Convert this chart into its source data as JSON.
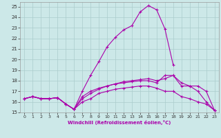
{
  "xlabel": "Windchill (Refroidissement éolien,°C)",
  "xlim": [
    -0.5,
    23.5
  ],
  "ylim": [
    15,
    25.4
  ],
  "xticks": [
    0,
    1,
    2,
    3,
    4,
    5,
    6,
    7,
    8,
    9,
    10,
    11,
    12,
    13,
    14,
    15,
    16,
    17,
    18,
    19,
    20,
    21,
    22,
    23
  ],
  "yticks": [
    15,
    16,
    17,
    18,
    19,
    20,
    21,
    22,
    23,
    24,
    25
  ],
  "bg_color": "#cce8e8",
  "grid_color": "#aacccc",
  "line_color": "#aa00aa",
  "curves": [
    [
      16.3,
      16.5,
      16.3,
      16.3,
      16.4,
      15.8,
      15.3,
      17.0,
      18.5,
      19.8,
      21.2,
      22.1,
      22.8,
      23.2,
      24.5,
      25.1,
      24.7,
      22.9,
      19.5,
      null,
      null,
      null,
      null,
      null
    ],
    [
      16.3,
      16.5,
      16.3,
      16.3,
      16.4,
      15.8,
      15.3,
      16.3,
      16.8,
      17.2,
      17.5,
      17.7,
      17.8,
      17.9,
      18.0,
      18.0,
      17.8,
      18.5,
      18.5,
      17.5,
      17.5,
      17.5,
      17.0,
      15.2
    ],
    [
      16.3,
      16.5,
      16.3,
      16.3,
      16.4,
      15.8,
      15.3,
      16.5,
      17.0,
      17.3,
      17.5,
      17.7,
      17.9,
      18.0,
      18.1,
      18.2,
      18.0,
      18.2,
      18.5,
      17.8,
      17.5,
      17.0,
      16.0,
      15.2
    ],
    [
      16.3,
      16.5,
      16.3,
      16.3,
      16.4,
      15.8,
      15.3,
      16.0,
      16.3,
      16.8,
      17.0,
      17.2,
      17.3,
      17.4,
      17.5,
      17.5,
      17.3,
      17.0,
      17.0,
      16.5,
      16.3,
      16.0,
      15.8,
      15.2
    ]
  ]
}
